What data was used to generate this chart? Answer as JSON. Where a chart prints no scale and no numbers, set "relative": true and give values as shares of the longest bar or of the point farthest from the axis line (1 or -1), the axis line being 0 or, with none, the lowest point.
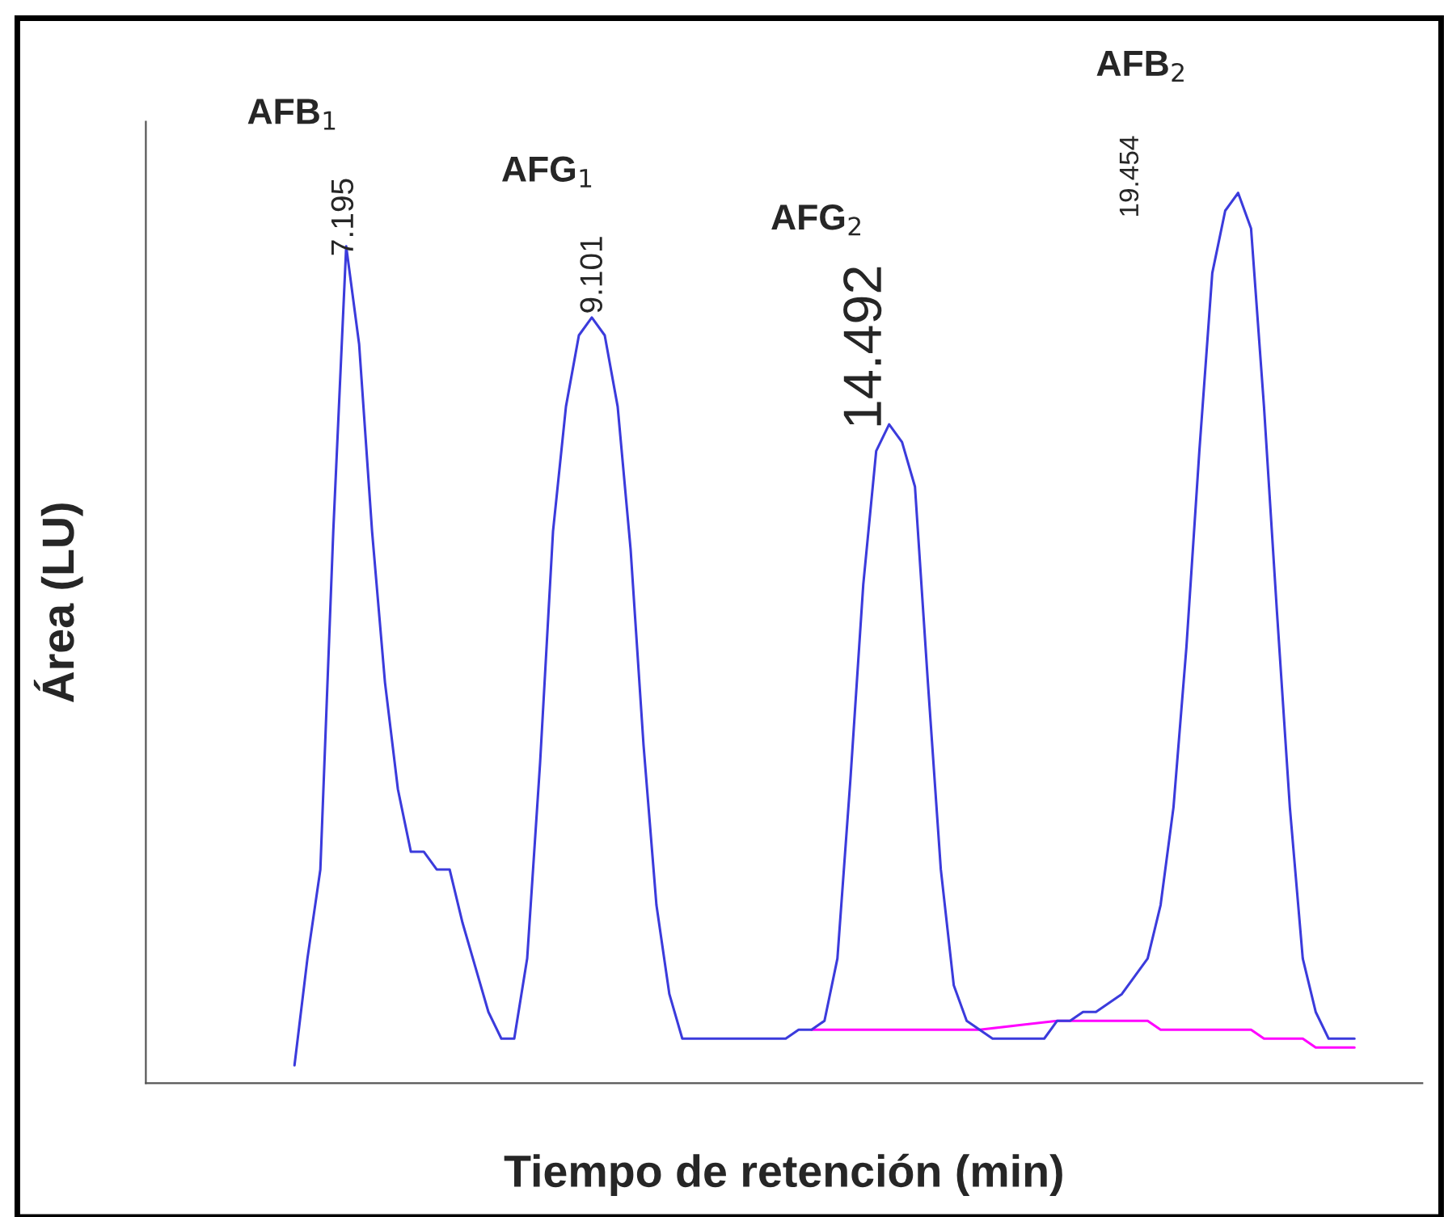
{
  "chart_data": {
    "type": "line",
    "relative": true,
    "xlabel": "Tiempo de retención (min)",
    "ylabel": "Área (LU)",
    "categories": [
      null,
      null,
      null,
      null,
      null,
      null,
      null,
      null,
      null,
      null,
      null,
      null,
      null,
      null,
      null,
      null,
      null,
      null,
      null,
      null,
      null,
      null,
      null,
      null,
      null,
      null,
      null,
      null,
      null,
      null,
      null,
      null,
      null,
      null,
      null,
      null,
      null,
      null,
      null,
      null,
      null,
      null,
      null,
      null,
      null,
      null,
      null,
      null,
      null,
      null,
      null,
      null,
      null,
      null,
      null,
      null,
      null,
      null,
      null,
      null,
      null,
      null,
      null,
      null,
      null,
      null,
      null,
      null,
      null,
      null,
      null,
      null,
      null,
      null,
      null,
      null,
      null,
      null,
      null,
      null,
      null,
      null,
      null
    ],
    "series": [
      {
        "color": "#ff00ff",
        "values": [
          null,
          null,
          null,
          null,
          null,
          null,
          null,
          null,
          null,
          null,
          null,
          null,
          null,
          null,
          null,
          null,
          null,
          null,
          null,
          null,
          null,
          null,
          null,
          null,
          null,
          null,
          null,
          null,
          null,
          null,
          null,
          null,
          null,
          null,
          null,
          null,
          null,
          null,
          null,
          null,
          0.06,
          0.06,
          0.06,
          0.06,
          0.06,
          0.06,
          0.06,
          0.06,
          0.06,
          0.06,
          0.06,
          0.06,
          0.06,
          0.06,
          null,
          null,
          null,
          null,
          null,
          0.07,
          0.07,
          0.07,
          0.07,
          0.07,
          0.07,
          0.07,
          0.07,
          0.06,
          0.06,
          0.06,
          0.06,
          0.06,
          0.06,
          0.06,
          0.06,
          0.05,
          0.05,
          0.05,
          0.05,
          0.04,
          0.04,
          0.04,
          0.04
        ]
      },
      {
        "color": "#3b3bdc",
        "values": [
          0.02,
          0.14,
          0.24,
          0.62,
          0.94,
          0.83,
          0.62,
          0.45,
          0.33,
          0.26,
          0.26,
          0.24,
          0.24,
          0.18,
          0.13,
          0.08,
          0.05,
          0.05,
          0.14,
          0.36,
          0.62,
          0.76,
          0.84,
          0.86,
          0.84,
          0.76,
          0.6,
          0.38,
          0.2,
          0.1,
          0.05,
          0.05,
          0.05,
          0.05,
          0.05,
          0.05,
          0.05,
          0.05,
          0.05,
          0.06,
          0.06,
          0.07,
          0.14,
          0.34,
          0.56,
          0.71,
          0.74,
          0.72,
          0.67,
          0.45,
          0.24,
          0.11,
          0.07,
          0.06,
          0.05,
          0.05,
          0.05,
          0.05,
          0.05,
          0.07,
          0.07,
          0.08,
          0.08,
          0.09,
          0.1,
          0.12,
          0.14,
          0.2,
          0.31,
          0.49,
          0.71,
          0.91,
          0.98,
          1,
          0.96,
          0.76,
          0.53,
          0.31,
          0.14,
          0.08,
          0.05,
          0.05,
          0.05
        ]
      }
    ],
    "annotations": [
      "AFB$_{1}$",
      "7.195",
      "AFG$_{1}$",
      "9.101",
      "AFG$_{2}$",
      "14.492",
      "AFB$_{2}$",
      "19.454"
    ],
    "grid": false
  }
}
